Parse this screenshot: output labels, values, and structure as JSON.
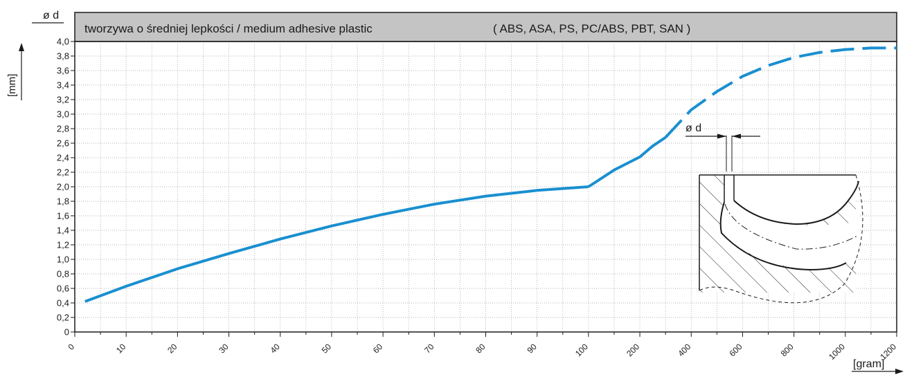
{
  "chart_data": {
    "type": "line",
    "title": "tworzywa o średniej lepkości / medium adhesive plastic",
    "subtitle": "( ABS, ASA, PS, PC/ABS, PBT, SAN )",
    "ylabel": "[mm]",
    "ylabel_top": "ø d",
    "xlabel": "[gram]",
    "ylim": [
      0,
      4.0
    ],
    "y_ticks": [
      "0",
      "0,2",
      "0,4",
      "0,6",
      "0,8",
      "1,0",
      "1,2",
      "1,4",
      "1,6",
      "1,8",
      "2,0",
      "2,2",
      "2,4",
      "2,6",
      "2,8",
      "3,0",
      "3,2",
      "3,4",
      "3,6",
      "3,8",
      "4,0"
    ],
    "x_ticks": [
      "0",
      "10",
      "20",
      "30",
      "40",
      "50",
      "60",
      "70",
      "80",
      "90",
      "100",
      "200",
      "400",
      "600",
      "800",
      "1000",
      "1200"
    ],
    "grid": true,
    "line_color": "#1a8fd0",
    "series": [
      {
        "style": "solid",
        "x": [
          2,
          10,
          20,
          30,
          40,
          50,
          60,
          70,
          80,
          90,
          100
        ],
        "y": [
          0.42,
          0.63,
          0.87,
          1.08,
          1.28,
          1.46,
          1.62,
          1.76,
          1.87,
          1.95,
          2.0
        ]
      },
      {
        "style": "solid",
        "x": [
          100,
          150,
          200,
          250,
          300
        ],
        "y": [
          2.0,
          2.23,
          2.41,
          2.56,
          2.68
        ]
      },
      {
        "style": "dashed",
        "x": [
          300,
          400,
          500,
          600,
          700,
          800,
          900,
          1000,
          1100,
          1200
        ],
        "y": [
          2.68,
          3.06,
          3.31,
          3.52,
          3.67,
          3.78,
          3.85,
          3.89,
          3.91,
          3.91
        ]
      }
    ]
  },
  "inset": {
    "label": "ø d"
  }
}
